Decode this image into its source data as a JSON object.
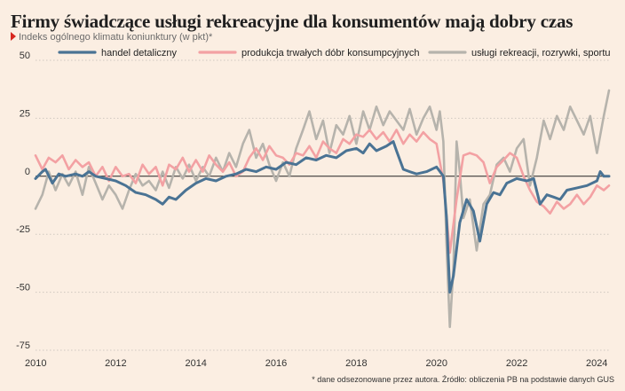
{
  "header": {
    "title": "Firmy świadczące usługi rekreacyjne dla konsumentów mają dobry czas",
    "subtitle": "Indeks ogólnego klimatu koniunktury (w pkt)*"
  },
  "footer": {
    "note": "* dane odsezonowane przez autora. Źródło: obliczenia PB na podstawie danych GUS"
  },
  "colors": {
    "handel": "#4a7394",
    "produkcja": "#f3a1a3",
    "uslugi": "#b6b3ac",
    "background": "#fbeee2",
    "grid": "#cfc8c0",
    "zero": "#222222"
  },
  "chart_data": {
    "type": "line",
    "x_unit": "year",
    "xlim": [
      2010,
      2024.3
    ],
    "ylim": [
      -75,
      50
    ],
    "y_ticks": [
      50,
      25,
      0,
      -25,
      -50,
      -75
    ],
    "x_ticks": [
      2010,
      2012,
      2014,
      2016,
      2018,
      2020,
      2022,
      2024
    ],
    "grid": "horizontal dotted",
    "legend_position": "top",
    "series": [
      {
        "name": "handel detaliczny",
        "color": "#4a7394",
        "points": [
          [
            2010.0,
            -1
          ],
          [
            2010.17,
            2
          ],
          [
            2010.25,
            3
          ],
          [
            2010.42,
            -3
          ],
          [
            2010.58,
            1
          ],
          [
            2010.75,
            0
          ],
          [
            2011.0,
            1
          ],
          [
            2011.17,
            0
          ],
          [
            2011.33,
            2
          ],
          [
            2011.5,
            0
          ],
          [
            2011.75,
            -1
          ],
          [
            2012.0,
            -2
          ],
          [
            2012.25,
            -4
          ],
          [
            2012.5,
            -7
          ],
          [
            2012.75,
            -8
          ],
          [
            2013.0,
            -10
          ],
          [
            2013.17,
            -12
          ],
          [
            2013.33,
            -9
          ],
          [
            2013.5,
            -10
          ],
          [
            2013.75,
            -6
          ],
          [
            2014.0,
            -3
          ],
          [
            2014.25,
            -1
          ],
          [
            2014.5,
            -2
          ],
          [
            2014.75,
            0
          ],
          [
            2015.0,
            1
          ],
          [
            2015.25,
            3
          ],
          [
            2015.5,
            2
          ],
          [
            2015.75,
            4
          ],
          [
            2016.0,
            3
          ],
          [
            2016.25,
            6
          ],
          [
            2016.5,
            5
          ],
          [
            2016.75,
            8
          ],
          [
            2017.0,
            7
          ],
          [
            2017.25,
            9
          ],
          [
            2017.5,
            8
          ],
          [
            2017.75,
            11
          ],
          [
            2018.0,
            12
          ],
          [
            2018.17,
            10
          ],
          [
            2018.33,
            14
          ],
          [
            2018.5,
            11
          ],
          [
            2018.75,
            13
          ],
          [
            2018.92,
            15
          ],
          [
            2019.0,
            11
          ],
          [
            2019.17,
            3
          ],
          [
            2019.33,
            2
          ],
          [
            2019.5,
            1
          ],
          [
            2019.75,
            2
          ],
          [
            2020.0,
            4
          ],
          [
            2020.17,
            0
          ],
          [
            2020.25,
            -18
          ],
          [
            2020.33,
            -50
          ],
          [
            2020.42,
            -43
          ],
          [
            2020.58,
            -20
          ],
          [
            2020.75,
            -10
          ],
          [
            2020.92,
            -15
          ],
          [
            2021.08,
            -28
          ],
          [
            2021.25,
            -12
          ],
          [
            2021.42,
            -7
          ],
          [
            2021.58,
            -8
          ],
          [
            2021.75,
            -3
          ],
          [
            2022.0,
            -1
          ],
          [
            2022.25,
            -2
          ],
          [
            2022.42,
            -1
          ],
          [
            2022.58,
            -12
          ],
          [
            2022.75,
            -8
          ],
          [
            2022.92,
            -9
          ],
          [
            2023.08,
            -10
          ],
          [
            2023.25,
            -6
          ],
          [
            2023.5,
            -5
          ],
          [
            2023.75,
            -4
          ],
          [
            2024.0,
            -2
          ],
          [
            2024.08,
            2
          ],
          [
            2024.17,
            0
          ],
          [
            2024.3,
            0
          ]
        ]
      },
      {
        "name": "produkcja trwałych dóbr konsumpcyjnych",
        "color": "#f3a1a3",
        "points": [
          [
            2010.0,
            9
          ],
          [
            2010.17,
            3
          ],
          [
            2010.33,
            8
          ],
          [
            2010.5,
            6
          ],
          [
            2010.67,
            9
          ],
          [
            2010.83,
            3
          ],
          [
            2011.0,
            7
          ],
          [
            2011.17,
            4
          ],
          [
            2011.33,
            6
          ],
          [
            2011.5,
            0
          ],
          [
            2011.67,
            4
          ],
          [
            2011.83,
            -2
          ],
          [
            2012.0,
            4
          ],
          [
            2012.17,
            0
          ],
          [
            2012.33,
            1
          ],
          [
            2012.5,
            -3
          ],
          [
            2012.67,
            5
          ],
          [
            2012.83,
            1
          ],
          [
            2013.0,
            4
          ],
          [
            2013.17,
            -4
          ],
          [
            2013.33,
            5
          ],
          [
            2013.5,
            3
          ],
          [
            2013.67,
            8
          ],
          [
            2013.83,
            2
          ],
          [
            2014.0,
            7
          ],
          [
            2014.17,
            2
          ],
          [
            2014.33,
            9
          ],
          [
            2014.5,
            5
          ],
          [
            2014.67,
            2
          ],
          [
            2014.83,
            6
          ],
          [
            2015.0,
            0
          ],
          [
            2015.17,
            2
          ],
          [
            2015.33,
            8
          ],
          [
            2015.5,
            12
          ],
          [
            2015.67,
            7
          ],
          [
            2015.83,
            13
          ],
          [
            2016.0,
            9
          ],
          [
            2016.17,
            8
          ],
          [
            2016.33,
            5
          ],
          [
            2016.5,
            10
          ],
          [
            2016.67,
            9
          ],
          [
            2016.83,
            13
          ],
          [
            2017.0,
            8
          ],
          [
            2017.17,
            15
          ],
          [
            2017.33,
            12
          ],
          [
            2017.5,
            10
          ],
          [
            2017.67,
            16
          ],
          [
            2017.83,
            14
          ],
          [
            2018.0,
            18
          ],
          [
            2018.17,
            17
          ],
          [
            2018.33,
            20
          ],
          [
            2018.5,
            16
          ],
          [
            2018.67,
            19
          ],
          [
            2018.83,
            15
          ],
          [
            2019.0,
            20
          ],
          [
            2019.17,
            14
          ],
          [
            2019.33,
            18
          ],
          [
            2019.5,
            15
          ],
          [
            2019.67,
            19
          ],
          [
            2019.83,
            16
          ],
          [
            2020.0,
            14
          ],
          [
            2020.17,
            -2
          ],
          [
            2020.33,
            -33
          ],
          [
            2020.5,
            -10
          ],
          [
            2020.67,
            9
          ],
          [
            2020.83,
            10
          ],
          [
            2021.0,
            9
          ],
          [
            2021.17,
            6
          ],
          [
            2021.33,
            -3
          ],
          [
            2021.5,
            4
          ],
          [
            2021.67,
            7
          ],
          [
            2021.83,
            10
          ],
          [
            2022.0,
            8
          ],
          [
            2022.17,
            0
          ],
          [
            2022.33,
            -6
          ],
          [
            2022.5,
            -11
          ],
          [
            2022.67,
            -13
          ],
          [
            2022.83,
            -16
          ],
          [
            2023.0,
            -11
          ],
          [
            2023.17,
            -14
          ],
          [
            2023.33,
            -12
          ],
          [
            2023.5,
            -8
          ],
          [
            2023.67,
            -12
          ],
          [
            2023.83,
            -9
          ],
          [
            2024.0,
            -4
          ],
          [
            2024.17,
            -6
          ],
          [
            2024.3,
            -4
          ]
        ]
      },
      {
        "name": "usługi rekreacji, rozrywki, sportu",
        "color": "#b6b3ac",
        "points": [
          [
            2010.0,
            -14
          ],
          [
            2010.17,
            -8
          ],
          [
            2010.33,
            2
          ],
          [
            2010.5,
            -6
          ],
          [
            2010.67,
            1
          ],
          [
            2010.83,
            -4
          ],
          [
            2011.0,
            2
          ],
          [
            2011.17,
            -8
          ],
          [
            2011.33,
            4
          ],
          [
            2011.5,
            -3
          ],
          [
            2011.67,
            -10
          ],
          [
            2011.83,
            -4
          ],
          [
            2012.0,
            -8
          ],
          [
            2012.17,
            -14
          ],
          [
            2012.33,
            -6
          ],
          [
            2012.5,
            1
          ],
          [
            2012.67,
            -4
          ],
          [
            2012.83,
            -2
          ],
          [
            2013.0,
            -6
          ],
          [
            2013.17,
            2
          ],
          [
            2013.33,
            -5
          ],
          [
            2013.5,
            4
          ],
          [
            2013.67,
            -1
          ],
          [
            2013.83,
            5
          ],
          [
            2014.0,
            -2
          ],
          [
            2014.17,
            4
          ],
          [
            2014.33,
            0
          ],
          [
            2014.5,
            8
          ],
          [
            2014.67,
            2
          ],
          [
            2014.83,
            10
          ],
          [
            2015.0,
            4
          ],
          [
            2015.17,
            14
          ],
          [
            2015.33,
            20
          ],
          [
            2015.5,
            8
          ],
          [
            2015.67,
            14
          ],
          [
            2015.83,
            5
          ],
          [
            2016.0,
            -2
          ],
          [
            2016.17,
            6
          ],
          [
            2016.33,
            0
          ],
          [
            2016.5,
            12
          ],
          [
            2016.67,
            20
          ],
          [
            2016.83,
            28
          ],
          [
            2017.0,
            16
          ],
          [
            2017.17,
            24
          ],
          [
            2017.33,
            10
          ],
          [
            2017.5,
            22
          ],
          [
            2017.67,
            18
          ],
          [
            2017.83,
            26
          ],
          [
            2018.0,
            14
          ],
          [
            2018.17,
            28
          ],
          [
            2018.33,
            20
          ],
          [
            2018.5,
            30
          ],
          [
            2018.67,
            22
          ],
          [
            2018.83,
            28
          ],
          [
            2019.0,
            24
          ],
          [
            2019.17,
            20
          ],
          [
            2019.33,
            29
          ],
          [
            2019.5,
            18
          ],
          [
            2019.67,
            25
          ],
          [
            2019.83,
            30
          ],
          [
            2020.0,
            20
          ],
          [
            2020.08,
            28
          ],
          [
            2020.17,
            15
          ],
          [
            2020.25,
            -30
          ],
          [
            2020.33,
            -65
          ],
          [
            2020.42,
            -40
          ],
          [
            2020.5,
            15
          ],
          [
            2020.58,
            2
          ],
          [
            2020.67,
            -18
          ],
          [
            2020.83,
            -10
          ],
          [
            2021.0,
            -32
          ],
          [
            2021.17,
            -12
          ],
          [
            2021.33,
            -8
          ],
          [
            2021.5,
            5
          ],
          [
            2021.67,
            8
          ],
          [
            2021.83,
            2
          ],
          [
            2022.0,
            12
          ],
          [
            2022.17,
            16
          ],
          [
            2022.33,
            -4
          ],
          [
            2022.5,
            8
          ],
          [
            2022.67,
            24
          ],
          [
            2022.83,
            16
          ],
          [
            2023.0,
            26
          ],
          [
            2023.17,
            20
          ],
          [
            2023.33,
            30
          ],
          [
            2023.5,
            24
          ],
          [
            2023.67,
            18
          ],
          [
            2023.83,
            26
          ],
          [
            2024.0,
            10
          ],
          [
            2024.17,
            26
          ],
          [
            2024.3,
            37
          ]
        ]
      }
    ]
  }
}
